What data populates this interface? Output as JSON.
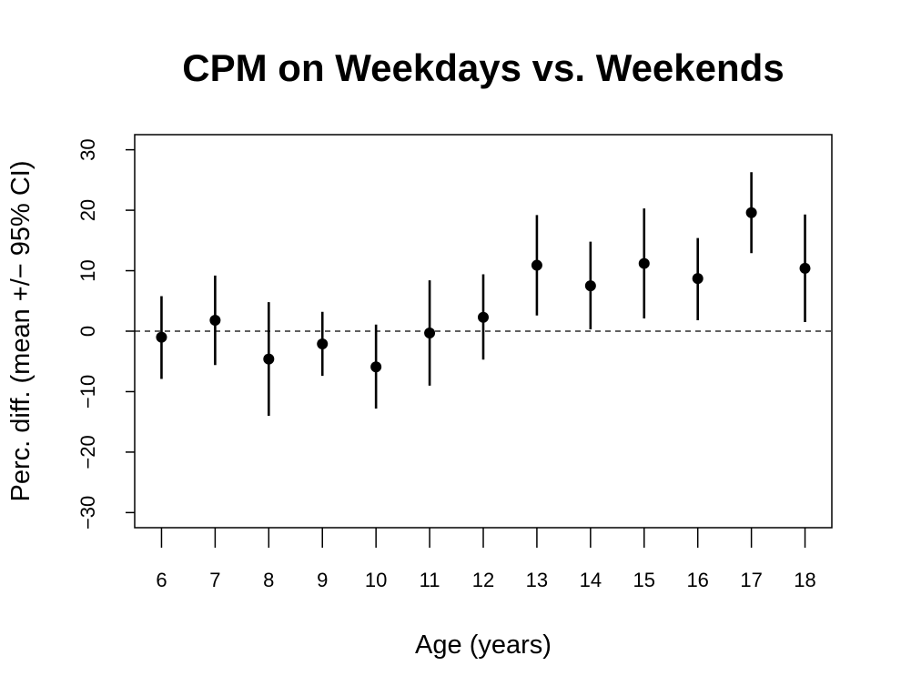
{
  "chart_data": {
    "type": "scatter",
    "title": "CPM on Weekdays vs. Weekends",
    "xlabel": "Age (years)",
    "ylabel": "Perc. diff. (mean +/− 95% CI)",
    "x": [
      6,
      7,
      8,
      9,
      10,
      11,
      12,
      13,
      14,
      15,
      16,
      17,
      18
    ],
    "x_tick_labels": [
      "6",
      "7",
      "8",
      "9",
      "10",
      "11",
      "12",
      "13",
      "14",
      "15",
      "16",
      "17",
      "18"
    ],
    "y_ticks": [
      -30,
      -20,
      -10,
      0,
      10,
      20,
      30
    ],
    "y_tick_labels": [
      "−30",
      "−20",
      "−10",
      "0",
      "10",
      "20",
      "30"
    ],
    "ylim": [
      -32.5,
      32.5
    ],
    "xlim": [
      5.5,
      18.5
    ],
    "reference_line": {
      "y": 0,
      "style": "dashed"
    },
    "series": [
      {
        "mean": [
          -1.0,
          1.8,
          -4.6,
          -2.1,
          -5.9,
          -0.3,
          2.3,
          10.9,
          7.5,
          11.2,
          8.7,
          19.6,
          10.4
        ],
        "lower": [
          -7.9,
          -5.6,
          -14.0,
          -7.4,
          -12.8,
          -9.0,
          -4.7,
          2.6,
          0.3,
          2.1,
          1.8,
          12.9,
          1.5
        ],
        "upper": [
          5.8,
          9.2,
          4.8,
          3.2,
          1.1,
          8.4,
          9.4,
          19.2,
          14.8,
          20.3,
          15.4,
          26.3,
          19.3
        ]
      }
    ],
    "grid": false,
    "legend": "none",
    "color": "#000000"
  }
}
